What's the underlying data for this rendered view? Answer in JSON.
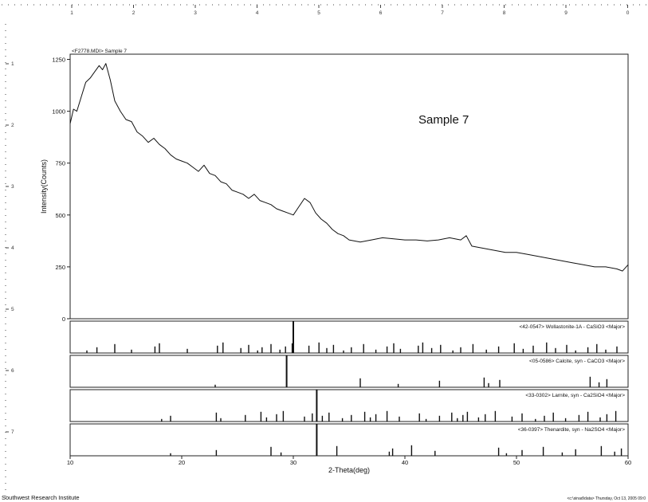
{
  "header": {
    "file_label": "<F2778.MDI> Sample 7"
  },
  "footer": {
    "left": "Southwest Research Institute",
    "right": "<c:\\sinad\\data> Thursday, Oct 13, 2005 09:0"
  },
  "ruler": {
    "top_ticks": [
      "1",
      "2",
      "3",
      "4",
      "5",
      "6",
      "7",
      "8",
      "9",
      "0"
    ],
    "left_ticks": [
      "1",
      "2",
      "3",
      "4",
      "5",
      "6",
      "7"
    ]
  },
  "chart_data": {
    "type": "line",
    "annotation": "Sample 7",
    "xlabel": "2-Theta(deg)",
    "ylabel": "Intensity(Counts)",
    "xlim": [
      10,
      60
    ],
    "ylim": [
      0,
      1275
    ],
    "xticks": [
      10,
      20,
      30,
      40,
      50,
      60
    ],
    "yticks": [
      0,
      250,
      500,
      750,
      1000,
      1250
    ],
    "grid": false,
    "series": [
      {
        "x": [
          10.0,
          10.3,
          10.6,
          11.0,
          11.4,
          11.8,
          12.2,
          12.6,
          12.9,
          13.2,
          13.6,
          14.0,
          14.5,
          15.0,
          15.5,
          16.0,
          16.5,
          17.0,
          17.5,
          18.0,
          18.5,
          19.0,
          19.5,
          20.0,
          20.5,
          21.0,
          21.5,
          22.0,
          22.5,
          23.0,
          23.5,
          24.0,
          24.5,
          25.0,
          25.5,
          26.0,
          26.5,
          27.0,
          27.5,
          28.0,
          28.5,
          29.0,
          29.5,
          30.0,
          30.5,
          31.0,
          31.5,
          32.0,
          32.5,
          33.0,
          33.5,
          34.0,
          34.5,
          35.0,
          36.0,
          37.0,
          38.0,
          39.0,
          40.0,
          41.0,
          42.0,
          43.0,
          44.0,
          45.0,
          45.5,
          46.0,
          47.0,
          48.0,
          49.0,
          50.0,
          51.0,
          52.0,
          53.0,
          54.0,
          55.0,
          56.0,
          57.0,
          58.0,
          59.0,
          59.5,
          60.0
        ],
        "y": [
          940,
          1010,
          1000,
          1070,
          1140,
          1160,
          1190,
          1220,
          1200,
          1230,
          1150,
          1050,
          1000,
          960,
          950,
          900,
          880,
          850,
          870,
          840,
          820,
          790,
          770,
          760,
          750,
          730,
          710,
          740,
          700,
          690,
          660,
          650,
          620,
          610,
          600,
          580,
          600,
          570,
          560,
          550,
          530,
          520,
          510,
          500,
          540,
          580,
          560,
          510,
          480,
          460,
          430,
          410,
          400,
          380,
          370,
          380,
          390,
          385,
          380,
          380,
          375,
          380,
          390,
          380,
          400,
          350,
          340,
          330,
          320,
          320,
          310,
          300,
          290,
          280,
          270,
          260,
          250,
          250,
          240,
          230,
          260
        ]
      }
    ],
    "reference_patterns": [
      {
        "label": "<42-0547> Wollastonite-1A - CaSiO3 <Major>",
        "max_peak": 30.0,
        "peaks": [
          11.5,
          12.4,
          14.0,
          15.5,
          17.6,
          18.0,
          20.5,
          23.2,
          23.7,
          25.3,
          26.0,
          26.8,
          27.2,
          28.0,
          28.8,
          29.3,
          29.9,
          30.0,
          31.4,
          32.3,
          33.0,
          33.6,
          34.5,
          35.2,
          36.3,
          37.4,
          38.4,
          39.0,
          39.6,
          41.2,
          41.6,
          42.4,
          43.2,
          44.3,
          45.0,
          46.1,
          47.3,
          48.4,
          49.8,
          50.6,
          51.5,
          52.7,
          53.5,
          54.5,
          55.3,
          56.4,
          57.2,
          58.0,
          59.0
        ]
      },
      {
        "label": "<05-0586> Calcite, syn - CaCO3 <Major>",
        "max_peak": 29.4,
        "peaks": [
          23.0,
          29.4,
          36.0,
          39.4,
          43.1,
          47.1,
          47.5,
          48.5,
          56.6,
          57.4,
          58.1
        ]
      },
      {
        "label": "<33-0302> Larnite, syn - Ca2SiO4 <Major>",
        "max_peak": 32.1,
        "peaks": [
          18.2,
          19.0,
          23.1,
          23.5,
          25.7,
          27.1,
          27.6,
          28.5,
          29.1,
          31.0,
          31.7,
          32.1,
          32.6,
          33.2,
          34.4,
          35.2,
          36.4,
          36.9,
          37.4,
          38.4,
          39.5,
          41.3,
          41.9,
          43.1,
          44.2,
          44.7,
          45.2,
          45.6,
          46.6,
          47.2,
          48.1,
          49.6,
          50.5,
          51.7,
          52.5,
          53.3,
          54.4,
          55.6,
          56.4,
          57.5,
          58.1,
          58.9
        ]
      },
      {
        "label": "<36-0397> Thenardite, syn - Na2SO4 <Major>",
        "max_peak": 32.1,
        "peaks": [
          19.0,
          23.1,
          28.0,
          28.9,
          32.1,
          33.9,
          38.6,
          38.9,
          40.6,
          42.7,
          48.4,
          49.1,
          50.5,
          52.4,
          54.1,
          55.3,
          57.6,
          58.8,
          59.4
        ]
      }
    ]
  }
}
